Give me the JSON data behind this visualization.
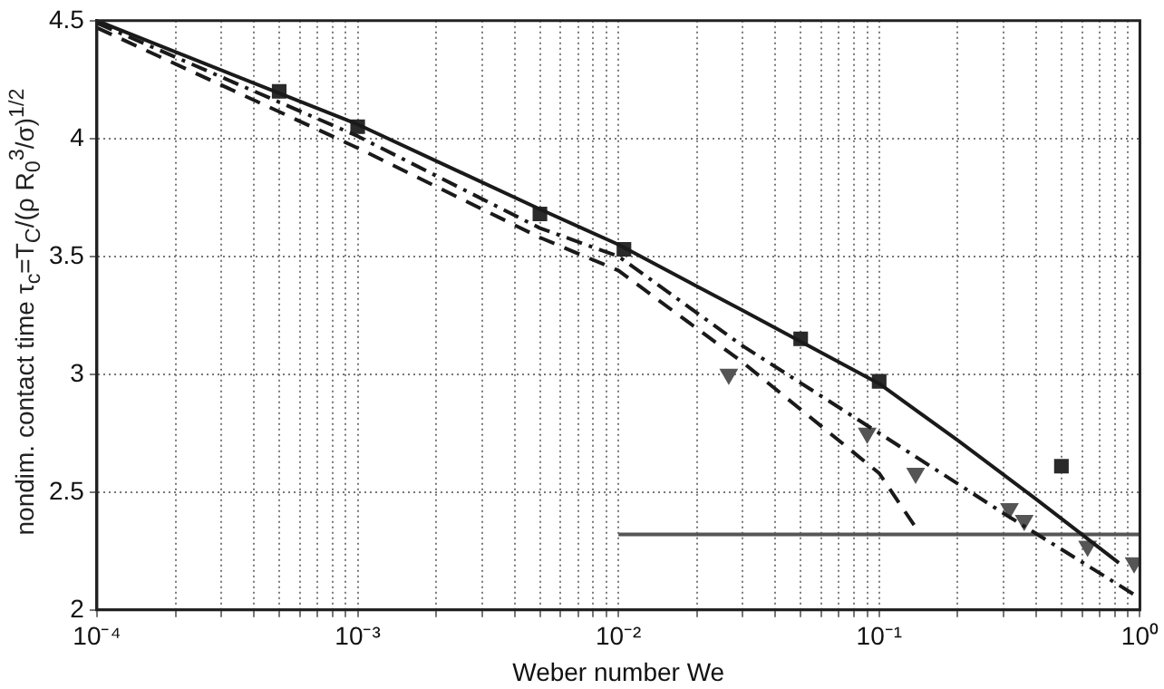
{
  "chart_data": {
    "type": "line",
    "xlabel": "Weber number We",
    "ylabel": "nondim. contact time τ$_{c}$=T$_{C}$/(ρ R$_{0}$$^{3}$/σ)$^{1/2}$",
    "log": "x",
    "grid": true,
    "legend": false,
    "xlim": [
      0.0001,
      1
    ],
    "ylim": [
      2,
      4.5
    ],
    "xticks": [
      {
        "value": 0.0001,
        "label": "10⁻⁴"
      },
      {
        "value": 0.0002,
        "label": null
      },
      {
        "value": 0.0003,
        "label": null
      },
      {
        "value": 0.0004,
        "label": null
      },
      {
        "value": 0.0005,
        "label": null
      },
      {
        "value": 0.0006,
        "label": null
      },
      {
        "value": 0.0007,
        "label": null
      },
      {
        "value": 0.0008,
        "label": null
      },
      {
        "value": 0.0009,
        "label": null
      },
      {
        "value": 0.001,
        "label": "10⁻³"
      },
      {
        "value": 0.002,
        "label": null
      },
      {
        "value": 0.003,
        "label": null
      },
      {
        "value": 0.004,
        "label": null
      },
      {
        "value": 0.005,
        "label": null
      },
      {
        "value": 0.006,
        "label": null
      },
      {
        "value": 0.007,
        "label": null
      },
      {
        "value": 0.008,
        "label": null
      },
      {
        "value": 0.009,
        "label": null
      },
      {
        "value": 0.01,
        "label": "10⁻²"
      },
      {
        "value": 0.02,
        "label": null
      },
      {
        "value": 0.03,
        "label": null
      },
      {
        "value": 0.04,
        "label": null
      },
      {
        "value": 0.05,
        "label": null
      },
      {
        "value": 0.06,
        "label": null
      },
      {
        "value": 0.07,
        "label": null
      },
      {
        "value": 0.08,
        "label": null
      },
      {
        "value": 0.09,
        "label": null
      },
      {
        "value": 0.1,
        "label": "10⁻¹"
      },
      {
        "value": 0.2,
        "label": null
      },
      {
        "value": 0.3,
        "label": null
      },
      {
        "value": 0.4,
        "label": null
      },
      {
        "value": 0.5,
        "label": null
      },
      {
        "value": 0.6,
        "label": null
      },
      {
        "value": 0.7,
        "label": null
      },
      {
        "value": 0.8,
        "label": null
      },
      {
        "value": 0.9,
        "label": null
      },
      {
        "value": 1,
        "label": "10⁰"
      }
    ],
    "yticks": [
      2,
      2.5,
      3,
      3.5,
      4,
      4.5
    ],
    "series": [
      {
        "color": "#1a1a1a",
        "line_style": "solid",
        "marker": "none",
        "x": [
          0.0001,
          0.001,
          0.005,
          0.01,
          0.03,
          0.1,
          0.2,
          0.4,
          0.83
        ],
        "values": [
          4.5,
          4.06,
          3.7,
          3.55,
          3.27,
          2.96,
          2.72,
          2.47,
          2.2
        ]
      },
      {
        "color": "#1a1a1a",
        "line_style": "dashdot",
        "marker": "none",
        "x": [
          0.0001,
          0.001,
          0.005,
          0.01,
          0.03,
          0.1,
          0.3,
          1
        ],
        "values": [
          4.49,
          4.01,
          3.62,
          3.5,
          3.12,
          2.75,
          2.41,
          2.05
        ]
      },
      {
        "color": "#1a1a1a",
        "line_style": "dashed",
        "marker": "none",
        "x": [
          0.0001,
          0.001,
          0.005,
          0.01,
          0.03,
          0.1,
          0.14
        ],
        "values": [
          4.47,
          3.96,
          3.58,
          3.44,
          3.05,
          2.58,
          2.34
        ]
      },
      {
        "color": "#555555",
        "line_style": "solid",
        "marker": "none",
        "x": [
          0.01,
          1
        ],
        "values": [
          2.32,
          2.32
        ]
      },
      {
        "type": "scatter",
        "color": "#2a2a2a",
        "marker": "square",
        "x": [
          0.0005,
          0.001,
          0.005,
          0.0105,
          0.05,
          0.1,
          0.5
        ],
        "values": [
          4.2,
          4.05,
          3.68,
          3.53,
          3.15,
          2.97,
          2.61
        ]
      },
      {
        "type": "scatter",
        "color": "#555555",
        "marker": "triangle",
        "x": [
          0.0265,
          0.09,
          0.138,
          0.316,
          0.36,
          0.63,
          0.95
        ],
        "values": [
          3.0,
          2.75,
          2.58,
          2.43,
          2.38,
          2.27,
          2.2
        ]
      }
    ]
  }
}
